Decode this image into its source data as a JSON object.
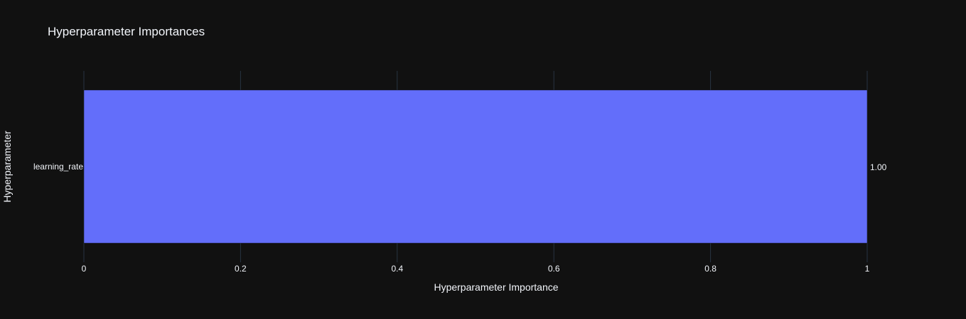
{
  "chart_data": {
    "type": "bar",
    "orientation": "horizontal",
    "title": "Hyperparameter Importances",
    "xlabel": "Hyperparameter Importance",
    "ylabel": "Hyperparameter",
    "categories": [
      "learning_rate"
    ],
    "values": [
      1.0
    ],
    "value_labels": [
      "1.00"
    ],
    "xlim": [
      0,
      1
    ],
    "xticks": [
      0,
      0.2,
      0.4,
      0.6,
      0.8,
      1
    ],
    "xtick_labels": [
      "0",
      "0.2",
      "0.4",
      "0.6",
      "0.8",
      "1"
    ],
    "grid": true,
    "bar_color": "#636efa",
    "background": "#111111"
  }
}
